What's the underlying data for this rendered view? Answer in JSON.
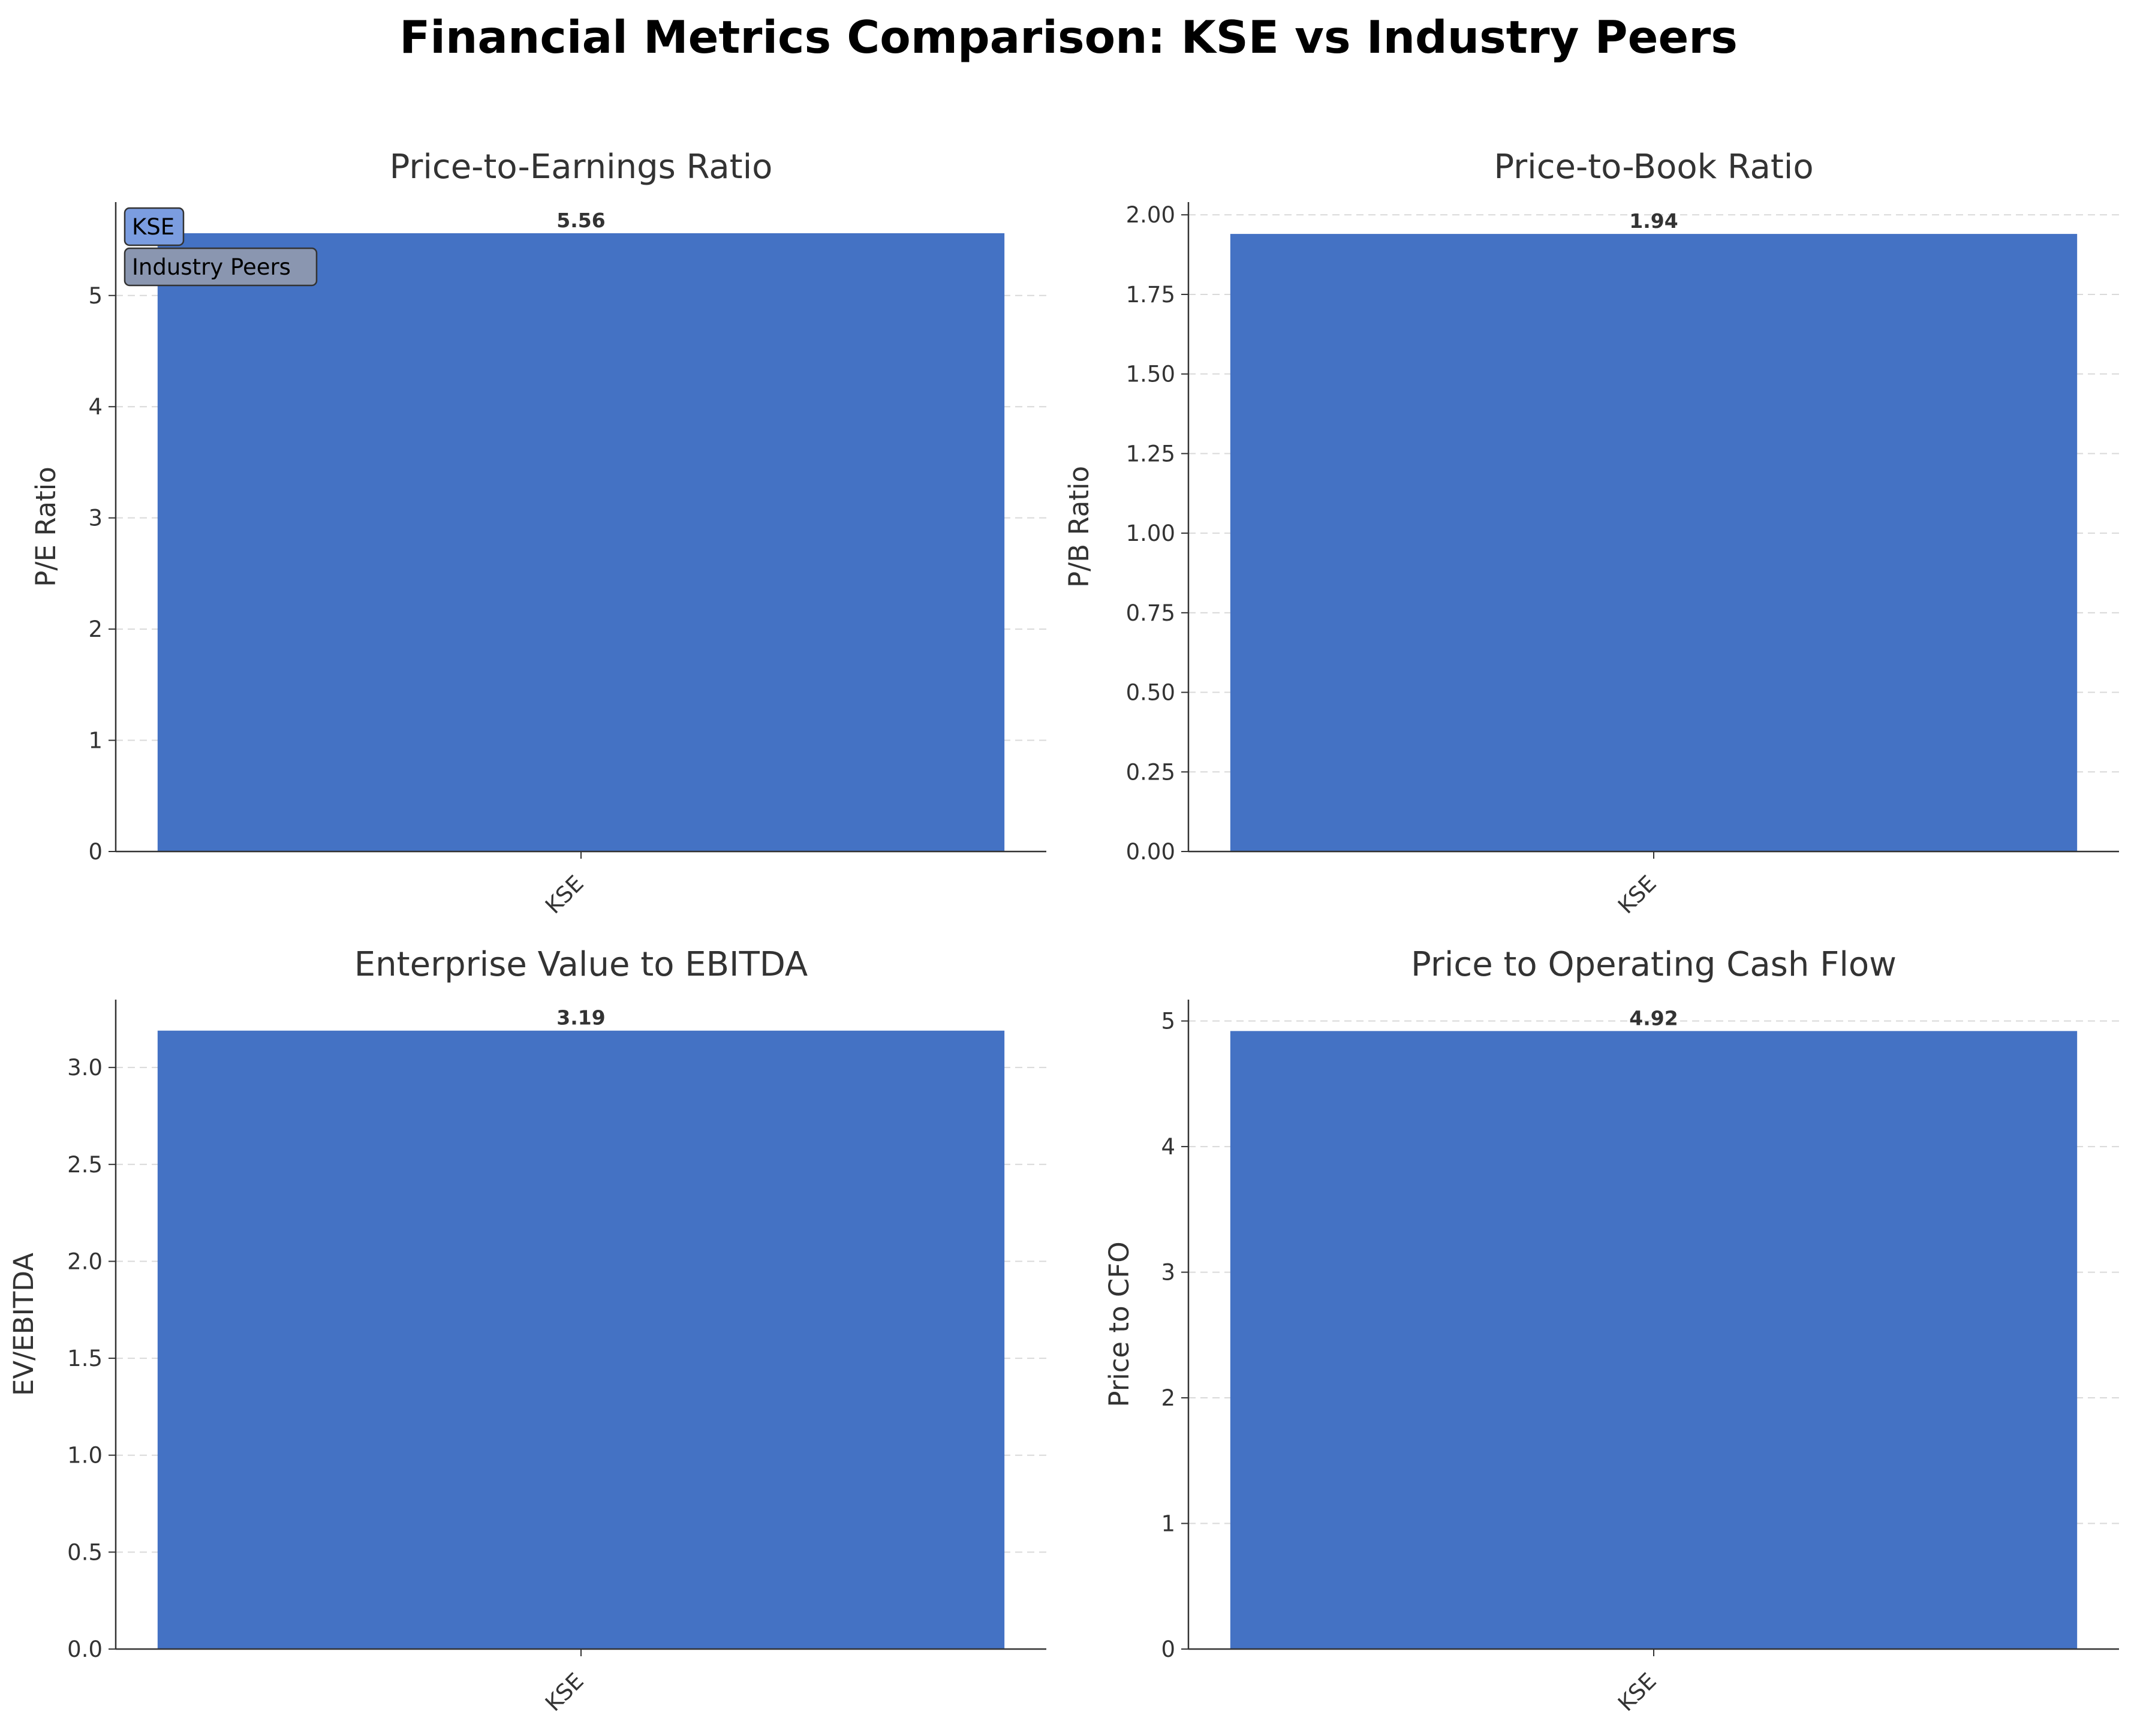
{
  "suptitle": "Financial Metrics Comparison: KSE vs Industry Peers",
  "colors": {
    "bar": "#4472c4",
    "axis": "#333333",
    "grid": "#d9d9d9"
  },
  "legend": {
    "location": "upper-left",
    "entries": [
      {
        "label": "KSE",
        "color": "#7b9de0"
      },
      {
        "label": "Industry Peers",
        "color": "#8a96b0"
      }
    ]
  },
  "chart_data": [
    {
      "type": "bar",
      "title": "Price-to-Earnings Ratio",
      "xlabel": "",
      "ylabel": "P/E Ratio",
      "categories": [
        "KSE"
      ],
      "values": [
        5.56
      ],
      "value_labels": [
        "5.56"
      ],
      "ylim": [
        0,
        5.84
      ],
      "yticks": [
        0,
        1,
        2,
        3,
        4,
        5
      ],
      "ytick_labels": [
        "0",
        "1",
        "2",
        "3",
        "4",
        "5"
      ],
      "grid": "y-dashed",
      "has_legend": true
    },
    {
      "type": "bar",
      "title": "Price-to-Book Ratio",
      "xlabel": "",
      "ylabel": "P/B Ratio",
      "categories": [
        "KSE"
      ],
      "values": [
        1.94
      ],
      "value_labels": [
        "1.94"
      ],
      "ylim": [
        0,
        2.04
      ],
      "yticks": [
        0,
        0.25,
        0.5,
        0.75,
        1.0,
        1.25,
        1.5,
        1.75,
        2.0
      ],
      "ytick_labels": [
        "0.00",
        "0.25",
        "0.50",
        "0.75",
        "1.00",
        "1.25",
        "1.50",
        "1.75",
        "2.00"
      ],
      "grid": "y-dashed",
      "has_legend": false
    },
    {
      "type": "bar",
      "title": "Enterprise Value to EBITDA",
      "xlabel": "",
      "ylabel": "EV/EBITDA",
      "categories": [
        "KSE"
      ],
      "values": [
        3.19
      ],
      "value_labels": [
        "3.19"
      ],
      "ylim": [
        0,
        3.35
      ],
      "yticks": [
        0,
        0.5,
        1.0,
        1.5,
        2.0,
        2.5,
        3.0
      ],
      "ytick_labels": [
        "0.0",
        "0.5",
        "1.0",
        "1.5",
        "2.0",
        "2.5",
        "3.0"
      ],
      "grid": "y-dashed",
      "has_legend": false
    },
    {
      "type": "bar",
      "title": "Price to Operating Cash Flow",
      "xlabel": "",
      "ylabel": "Price to CFO",
      "categories": [
        "KSE"
      ],
      "values": [
        4.92
      ],
      "value_labels": [
        "4.92"
      ],
      "ylim": [
        0,
        5.17
      ],
      "yticks": [
        0,
        1,
        2,
        3,
        4,
        5
      ],
      "ytick_labels": [
        "0",
        "1",
        "2",
        "3",
        "4",
        "5"
      ],
      "grid": "y-dashed",
      "has_legend": false
    }
  ]
}
